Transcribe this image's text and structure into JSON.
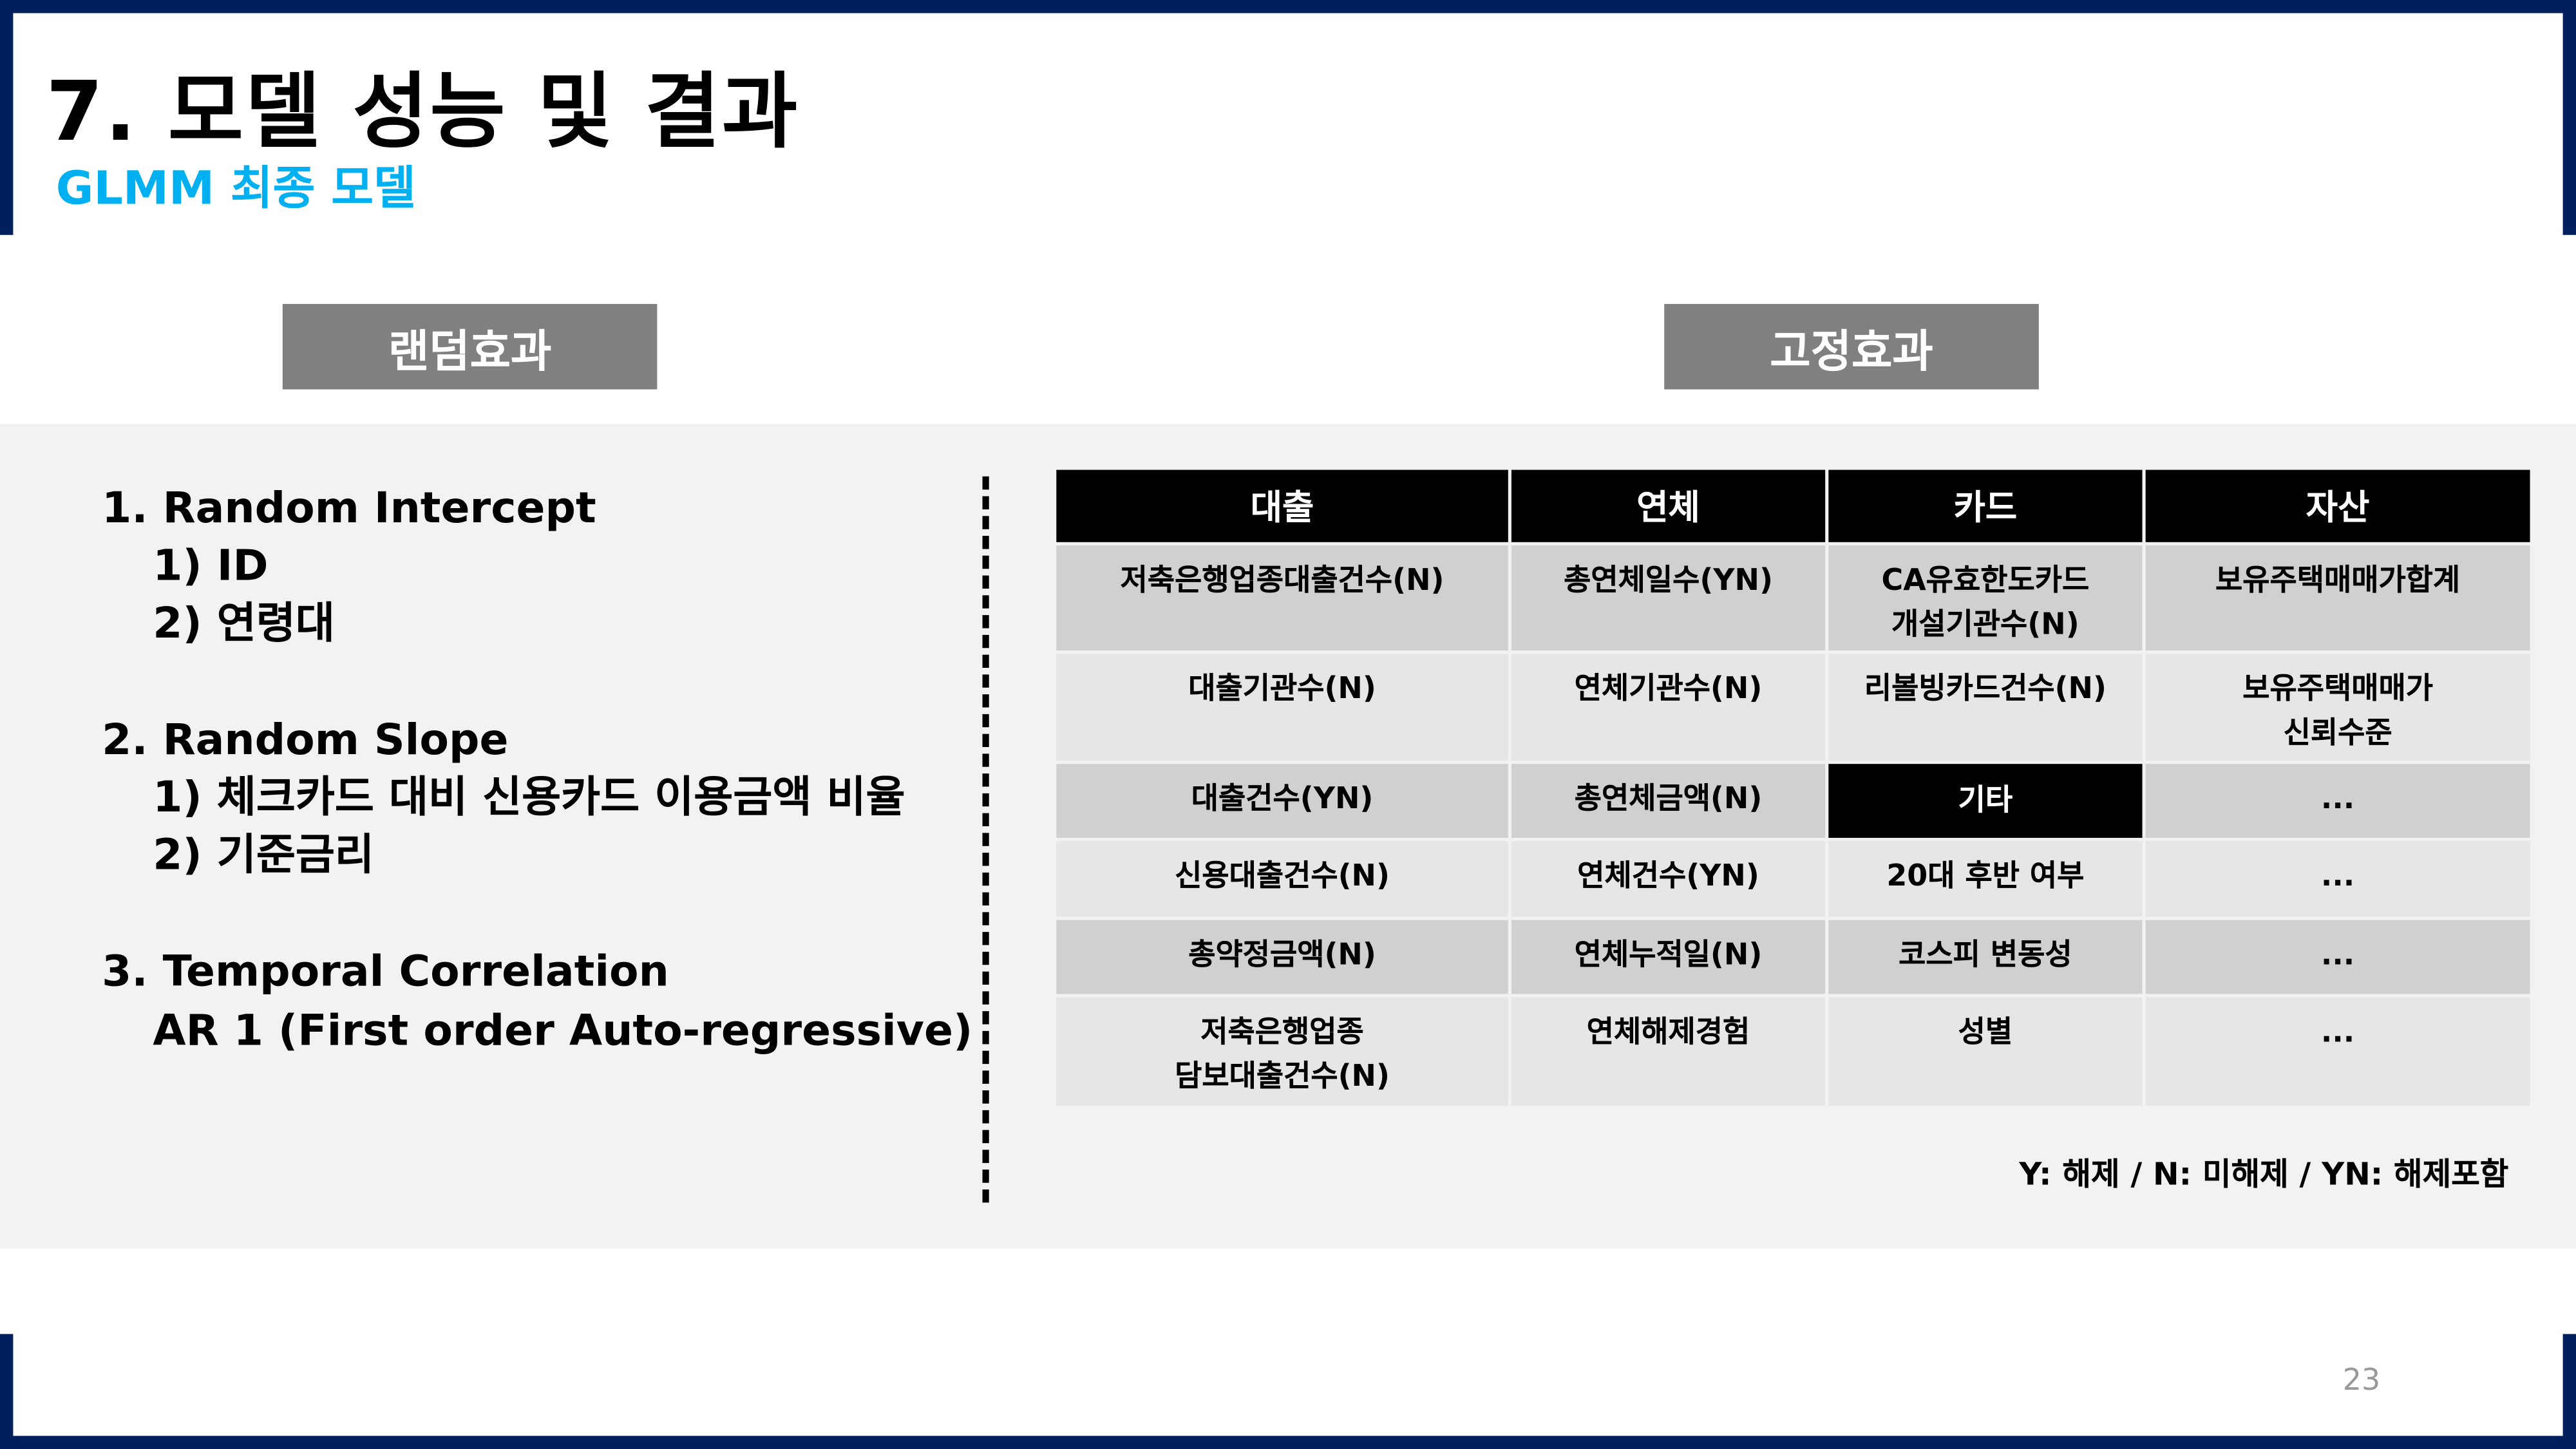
{
  "title": "7. 모델 성능 및 결과",
  "subtitle": "GLMM 최종 모델",
  "colors": {
    "frame": "#001f5c",
    "accent": "#00b0f0",
    "section_button": "#808080",
    "band": "#f2f2f2"
  },
  "sections": {
    "random_label": "랜덤효과",
    "fixed_label": "고정효과"
  },
  "random_effects": {
    "lines": [
      "1. Random Intercept",
      "1) ID",
      "2) 연령대",
      "2. Random Slope",
      "1) 체크카드 대비 신용카드 이용금액 비율",
      "2) 기준금리",
      "3. Temporal Correlation",
      "AR 1 (First order Auto-regressive)"
    ]
  },
  "fixed_effects": {
    "headers": [
      "대출",
      "연체",
      "카드",
      "자산"
    ],
    "rows": [
      [
        "저축은행업종대출건수(N)",
        "총연체일수(YN)",
        "CA유효한도카드\n개설기관수(N)",
        "보유주택매매가합계"
      ],
      [
        "대출기관수(N)",
        "연체기관수(N)",
        "리볼빙카드건수(N)",
        "보유주택매매가\n신뢰수준"
      ],
      [
        "대출건수(YN)",
        "총연체금액(N)",
        "기타",
        "..."
      ],
      [
        "신용대출건수(N)",
        "연체건수(YN)",
        "20대 후반 여부",
        "..."
      ],
      [
        "총약정금액(N)",
        "연체누적일(N)",
        "코스피 변동성",
        "..."
      ],
      [
        "저축은행업종\n담보대출건수(N)",
        "연체해제경험",
        "성별",
        "..."
      ]
    ],
    "highlighted_cell": "기타",
    "legend": "Y: 해제 / N: 미해제 / YN: 해제포함"
  },
  "page_number": "23"
}
